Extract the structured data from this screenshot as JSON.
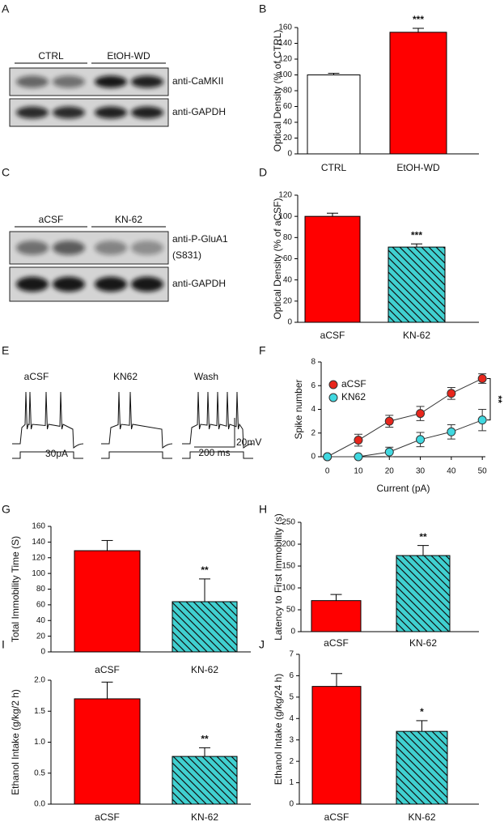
{
  "blots": [
    {
      "letter": "A",
      "groups": [
        "CTRL",
        "EtOH-WD"
      ],
      "rows": [
        [
          "anti-CaMKII"
        ],
        [
          "anti-GAPDH"
        ]
      ]
    },
    {
      "letter": "C",
      "groups": [
        "aCSF",
        "KN-62"
      ],
      "rows": [
        [
          "anti-P-GluA1",
          "(S831)"
        ],
        [
          "anti-GAPDH"
        ]
      ]
    }
  ],
  "traces": {
    "letter": "E",
    "labels": [
      "aCSF",
      "KN62",
      "Wash"
    ],
    "stimulus": "30pA",
    "scale_v": "20mV",
    "scale_t": "200 ms"
  },
  "chart_data": [
    {
      "letter": "B",
      "type": "bar",
      "ylabel": "Optical Density (% of CTRL)",
      "categories": [
        "CTRL",
        "EtOH-WD"
      ],
      "values": [
        100,
        154
      ],
      "errors": [
        2,
        5
      ],
      "colors": [
        "#ffffff",
        "#ff0000"
      ],
      "hatch": [
        false,
        false
      ],
      "ylim": [
        0,
        160
      ],
      "yticks": [
        0,
        20,
        40,
        60,
        80,
        100,
        120,
        140,
        160
      ],
      "annotations": [
        {
          "text": "***",
          "index": 1
        }
      ]
    },
    {
      "letter": "D",
      "type": "bar",
      "ylabel": "Optical Density (% of aCSF)",
      "categories": [
        "aCSF",
        "KN-62"
      ],
      "values": [
        100,
        71
      ],
      "errors": [
        3,
        3
      ],
      "colors": [
        "#ff0000",
        "#40d0d0"
      ],
      "hatch": [
        false,
        true
      ],
      "ylim": [
        0,
        120
      ],
      "yticks": [
        0,
        20,
        40,
        60,
        80,
        100,
        120
      ],
      "annotations": [
        {
          "text": "***",
          "index": 1
        }
      ]
    },
    {
      "letter": "F",
      "type": "line",
      "xlabel": "Current (pA)",
      "ylabel": "Spike number",
      "x": [
        0,
        10,
        20,
        30,
        40,
        50
      ],
      "xlim": [
        -2,
        51
      ],
      "xticks": [
        0,
        10,
        20,
        30,
        40,
        50
      ],
      "ylim": [
        0,
        8
      ],
      "yticks": [
        0,
        2,
        4,
        6,
        8
      ],
      "legend": "upper left",
      "series": [
        {
          "name": "aCSF",
          "color": "#e8261c",
          "values": [
            0,
            1.4,
            3.0,
            3.65,
            5.35,
            6.6
          ],
          "errors": [
            0,
            0.5,
            0.5,
            0.6,
            0.5,
            0.4
          ]
        },
        {
          "name": "KN62",
          "color": "#40d8e0",
          "values": [
            0,
            0,
            0.4,
            1.45,
            2.1,
            3.1
          ],
          "errors": [
            0,
            0,
            0.4,
            0.6,
            0.6,
            0.9
          ]
        }
      ],
      "annotations": [
        {
          "text": "**"
        }
      ]
    },
    {
      "letter": "G",
      "type": "bar",
      "ylabel": "Total Immobility Time (S)",
      "categories": [
        "aCSF",
        "KN-62"
      ],
      "values": [
        129,
        64
      ],
      "errors": [
        13,
        29
      ],
      "colors": [
        "#ff0000",
        "#40d0d0"
      ],
      "hatch": [
        false,
        true
      ],
      "ylim": [
        0,
        160
      ],
      "yticks": [
        0,
        20,
        40,
        60,
        80,
        100,
        120,
        140,
        160
      ],
      "annotations": [
        {
          "text": "**",
          "index": 1
        }
      ]
    },
    {
      "letter": "H",
      "type": "bar",
      "ylabel": "Latency to First Immobility (s)",
      "categories": [
        "aCSF",
        "KN-62"
      ],
      "values": [
        71,
        174
      ],
      "errors": [
        14,
        23
      ],
      "colors": [
        "#ff0000",
        "#40d0d0"
      ],
      "hatch": [
        false,
        true
      ],
      "ylim": [
        0,
        250
      ],
      "yticks": [
        0,
        50,
        100,
        150,
        200,
        250
      ],
      "annotations": [
        {
          "text": "**",
          "index": 1
        }
      ]
    },
    {
      "letter": "I",
      "type": "bar",
      "ylabel": "Ethanol Intake (g/kg/2 h)",
      "categories": [
        "aCSF",
        "KN-62"
      ],
      "values": [
        1.7,
        0.77
      ],
      "errors": [
        0.27,
        0.14
      ],
      "colors": [
        "#ff0000",
        "#40d0d0"
      ],
      "hatch": [
        false,
        true
      ],
      "ylim": [
        0,
        2
      ],
      "yticks": [
        {
          "value": 0,
          "label": "0.0"
        },
        0.5,
        {
          "value": 1,
          "label": "1.0"
        },
        1.5,
        {
          "value": 2,
          "label": "2.0"
        }
      ],
      "annotations": [
        {
          "text": "**",
          "index": 1
        }
      ]
    },
    {
      "letter": "J",
      "type": "bar",
      "ylabel": "Ethanol Intake (g/kg/24 h)",
      "categories": [
        "aCSF",
        "KN-62"
      ],
      "values": [
        5.5,
        3.4
      ],
      "errors": [
        0.6,
        0.5
      ],
      "colors": [
        "#ff0000",
        "#40d0d0"
      ],
      "hatch": [
        false,
        true
      ],
      "ylim": [
        0,
        7
      ],
      "yticks": [
        0,
        1,
        2,
        3,
        4,
        5,
        6,
        7
      ],
      "annotations": [
        {
          "text": "*",
          "index": 1
        }
      ]
    }
  ]
}
